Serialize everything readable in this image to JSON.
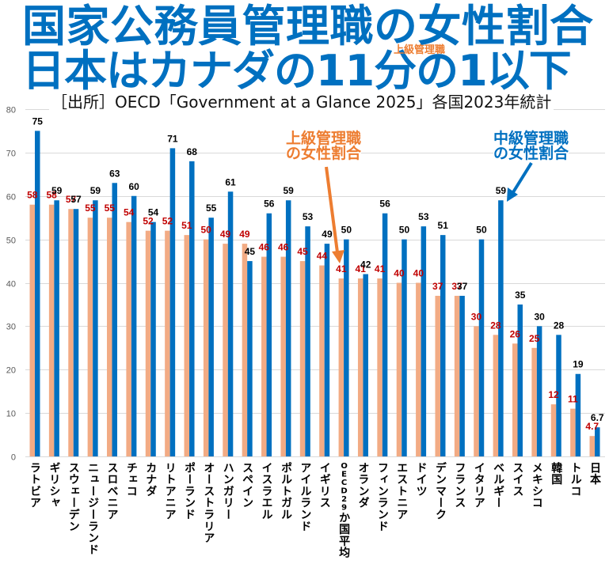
{
  "title": {
    "line1": "国家公務員管理職の女性割合",
    "line2": "日本はカナダの11分の1以下",
    "line2_note": "上級管理職"
  },
  "subtitle": "［出所］OECD「Government at a Glance 2025」各国2023年統計",
  "annotations": {
    "senior": {
      "line1": "上級管理職",
      "line2": "の女性割合"
    },
    "middle": {
      "line1": "中級管理職",
      "line2": "の女性割合"
    }
  },
  "colors": {
    "title": "#0070C0",
    "title_note": "#ED7D31",
    "senior_bar": "#F2AB84",
    "middle_bar": "#0070C0",
    "senior_label": "#C00000",
    "middle_label": "#000000",
    "annotation_senior": "#ED7D31",
    "annotation_middle": "#0070C0",
    "gridline": "#D9D9D9"
  },
  "chart_data": {
    "type": "bar",
    "title": "国家公務員管理職の女性割合",
    "xlabel": "",
    "ylabel": "",
    "ylim": [
      0,
      80
    ],
    "yticks": [
      0,
      10,
      20,
      30,
      40,
      50,
      60,
      70,
      80
    ],
    "grid": true,
    "legend": "annotations (上級管理職の女性割合 → orange bars, 中級管理職の女性割合 → blue bars)",
    "categories": [
      "ラトビア",
      "ギリシャ",
      "スウェーデン",
      "ニュージーランド",
      "スロベニア",
      "チェコ",
      "カナダ",
      "リトアニア",
      "ポーランド",
      "オーストラリア",
      "ハンガリー",
      "スペイン",
      "イスラエル",
      "ポルトガル",
      "アイルランド",
      "イギリス",
      "OECD29か国平均",
      "オランダ",
      "フィンランド",
      "エストニア",
      "ドイツ",
      "デンマーク",
      "フランス",
      "イタリア",
      "ベルギー",
      "スイス",
      "メキシコ",
      "韓国",
      "トルコ",
      "日本"
    ],
    "series": [
      {
        "name": "上級管理職の女性割合",
        "values": [
          58,
          58,
          57,
          55,
          55,
          54,
          52,
          52,
          51,
          50,
          49,
          49,
          46,
          46,
          45,
          44,
          41,
          41,
          41,
          40,
          40,
          37,
          37,
          30,
          28,
          26,
          25,
          12,
          11,
          4.7
        ]
      },
      {
        "name": "中級管理職の女性割合",
        "values": [
          75,
          59,
          57,
          59,
          63,
          60,
          54,
          71,
          68,
          55,
          61,
          45,
          56,
          59,
          53,
          49,
          50,
          42,
          56,
          50,
          53,
          51,
          37,
          50,
          59,
          35,
          30,
          28,
          19,
          6.7
        ]
      }
    ]
  }
}
